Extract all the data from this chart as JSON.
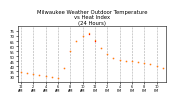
{
  "title": "Milwaukee Weather Outdoor Temperature\nvs Heat Index\n(24 Hours)",
  "title_color": "#000000",
  "title_fontsize": 3.8,
  "background_color": "#ffffff",
  "plot_bg_color": "#ffffff",
  "grid_color": "#aaaaaa",
  "temp_color": "#ff0000",
  "heat_color": "#ff8800",
  "ylabel_color": "#000000",
  "ylabel_fontsize": 2.8,
  "xlabel_fontsize": 2.5,
  "hours": [
    0,
    1,
    2,
    3,
    4,
    5,
    6,
    7,
    8,
    9,
    10,
    11,
    12,
    13,
    14,
    15,
    16,
    17,
    18,
    19,
    20,
    21,
    22,
    23
  ],
  "temp": [
    34,
    33,
    32,
    31,
    30,
    29,
    28,
    38,
    55,
    65,
    70,
    72,
    65,
    58,
    52,
    48,
    46,
    45,
    45,
    44,
    43,
    42,
    40,
    38
  ],
  "heat_index": [
    34,
    33,
    32,
    31,
    30,
    29,
    28,
    38,
    55,
    65,
    70,
    73,
    66,
    58,
    52,
    48,
    46,
    45,
    45,
    44,
    43,
    42,
    40,
    38
  ],
  "ylim": [
    25,
    80
  ],
  "yticks": [
    30,
    35,
    40,
    45,
    50,
    55,
    60,
    65,
    70,
    75
  ],
  "ytick_labels": [
    "30",
    "35",
    "40",
    "45",
    "50",
    "55",
    "60",
    "65",
    "70",
    "75"
  ],
  "xlim": [
    -0.5,
    23.5
  ],
  "xtick_positions": [
    0,
    2,
    4,
    6,
    8,
    10,
    12,
    14,
    16,
    18,
    20,
    22
  ],
  "xtick_labels": [
    "12\nAM",
    "2\nAM",
    "4\nAM",
    "6\nAM",
    "8\nAM",
    "10\nAM",
    "12\nPM",
    "2\nPM",
    "4\nPM",
    "6\nPM",
    "8\nPM",
    "10\nPM"
  ],
  "marker_size": 0.9,
  "grid_linewidth": 0.4,
  "grid_linestyle": "--",
  "spine_linewidth": 0.4
}
